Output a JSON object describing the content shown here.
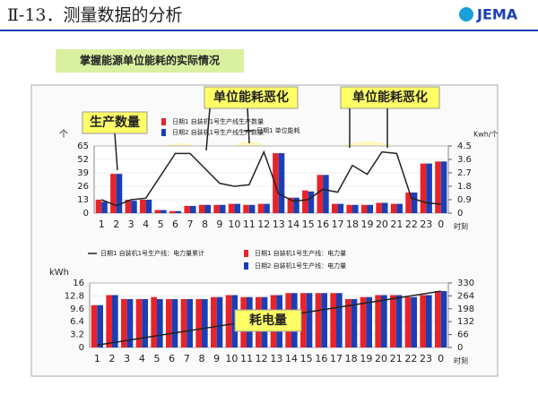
{
  "header": {
    "title": "Ⅱ-13．测量数据的分析",
    "logo": "JEMA",
    "banner": "掌握能源单位能耗的实际情况"
  },
  "callouts": [
    "生产数量",
    "单位能耗恶化",
    "单位能耗恶化",
    "耗电量"
  ],
  "chart_data": [
    {
      "type": "bar",
      "xlabel": "时刻",
      "ylabel": "个",
      "y2label": "Kwh/个",
      "categories": [
        "1",
        "2",
        "3",
        "4",
        "5",
        "6",
        "7",
        "8",
        "9",
        "10",
        "11",
        "12",
        "13",
        "14",
        "15",
        "16",
        "17",
        "18",
        "19",
        "20",
        "21",
        "22",
        "23",
        "0"
      ],
      "ylim": [
        0,
        65
      ],
      "yticks": [
        0,
        13,
        26,
        39,
        52,
        65
      ],
      "y2lim": [
        0,
        4.5
      ],
      "y2ticks": [
        0,
        0.9,
        1.8,
        2.7,
        3.6,
        4.5
      ],
      "grid": true,
      "series": [
        {
          "name": "日期1 自装机1号生产线生产数量",
          "color": "#e8232a",
          "values": [
            13,
            38,
            13,
            13,
            3,
            2,
            7,
            8,
            8,
            9,
            8,
            9,
            58,
            15,
            22,
            37,
            9,
            8,
            8,
            10,
            9,
            20,
            48,
            50
          ]
        },
        {
          "name": "日期2 自装机1号生产线生产数量",
          "color": "#1a3fb5",
          "values": [
            11,
            38,
            12,
            13,
            3,
            2,
            7,
            8,
            8,
            9,
            8,
            9,
            58,
            15,
            21,
            37,
            9,
            8,
            8,
            10,
            9,
            20,
            48,
            50
          ]
        },
        {
          "name": "日期1 单位能耗",
          "color": "#222222",
          "type": "line",
          "axis": "y2",
          "values": [
            0.9,
            0.5,
            0.9,
            1.0,
            2.5,
            4.0,
            4.0,
            3.0,
            2.0,
            1.8,
            1.9,
            4.1,
            1.3,
            0.8,
            0.9,
            1.6,
            1.4,
            3.2,
            2.6,
            4.1,
            4.0,
            1.0,
            0.7,
            0.6
          ]
        }
      ]
    },
    {
      "type": "bar",
      "xlabel": "时刻",
      "ylabel": "kWh",
      "categories": [
        "1",
        "2",
        "3",
        "4",
        "5",
        "6",
        "7",
        "8",
        "9",
        "10",
        "11",
        "12",
        "13",
        "14",
        "15",
        "16",
        "17",
        "18",
        "19",
        "20",
        "21",
        "22",
        "23",
        "0"
      ],
      "ylim": [
        0,
        16
      ],
      "yticks": [
        0,
        3.2,
        6.4,
        9.6,
        12.8,
        16
      ],
      "y2lim": [
        0,
        330
      ],
      "y2ticks": [
        0,
        66,
        132,
        198,
        264,
        330
      ],
      "grid": true,
      "series": [
        {
          "name": "日期1 自装机1号生产线：电力量",
          "color": "#e8232a",
          "values": [
            10.5,
            13,
            12,
            12,
            12.5,
            12,
            12,
            12,
            12.5,
            13,
            12.5,
            12.5,
            13,
            13.5,
            13.5,
            13.5,
            13.5,
            12,
            12.5,
            13,
            13,
            12.5,
            13,
            14
          ]
        },
        {
          "name": "日期2 自装机1号生产线：电力量",
          "color": "#1a3fb5",
          "values": [
            10.5,
            13,
            12,
            12,
            12,
            12,
            12,
            12,
            12.5,
            13,
            12.5,
            12.5,
            13,
            13.5,
            13.5,
            13.5,
            13.5,
            12,
            12.5,
            13,
            13,
            12.5,
            13,
            14
          ]
        },
        {
          "name": "日期1 自装机1号生产线：电力量累计",
          "color": "#222222",
          "type": "line",
          "axis": "y2",
          "values": [
            12,
            24,
            36,
            48,
            60,
            72,
            84,
            96,
            108,
            120,
            132,
            144,
            156,
            168,
            180,
            192,
            204,
            216,
            228,
            240,
            252,
            264,
            276,
            288
          ]
        }
      ]
    }
  ]
}
